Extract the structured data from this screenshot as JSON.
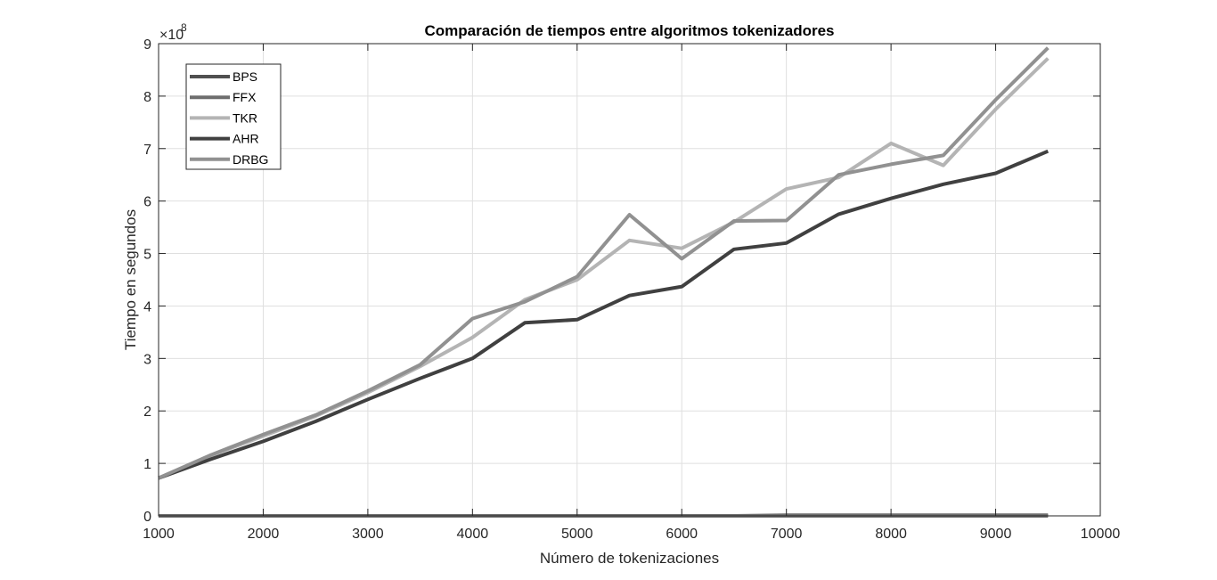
{
  "chart_data": {
    "type": "line",
    "title": "Comparación de tiempos entre algoritmos tokenizadores",
    "xlabel": "Número de tokenizaciones",
    "ylabel": "Tiempo en segundos",
    "y_exponent_label": "×10",
    "y_exponent_power": "8",
    "y_scale_factor": 100000000,
    "xlim": [
      1000,
      10000
    ],
    "ylim": [
      0,
      9
    ],
    "x_ticks": [
      1000,
      2000,
      3000,
      4000,
      5000,
      6000,
      7000,
      8000,
      9000,
      10000
    ],
    "y_ticks": [
      0,
      1,
      2,
      3,
      4,
      5,
      6,
      7,
      8,
      9
    ],
    "x_tick_labels": [
      "1000",
      "2000",
      "3000",
      "4000",
      "5000",
      "6000",
      "7000",
      "8000",
      "9000",
      "10000"
    ],
    "y_tick_labels": [
      "0",
      "1",
      "2",
      "3",
      "4",
      "5",
      "6",
      "7",
      "8",
      "9"
    ],
    "grid": true,
    "legend_position": "top-left",
    "x": [
      1000,
      1500,
      2000,
      2500,
      3000,
      3500,
      4000,
      4500,
      5000,
      5500,
      6000,
      6500,
      7000,
      7500,
      8000,
      8500,
      9000,
      9500
    ],
    "series": [
      {
        "name": "BPS",
        "color": "#505050",
        "values": [
          0.0,
          0.0,
          0.0,
          0.0,
          0.0,
          0.0,
          0.0,
          0.0,
          0.0,
          0.0,
          0.0,
          0.0,
          0.01,
          0.01,
          0.01,
          0.01,
          0.01,
          0.01
        ]
      },
      {
        "name": "FFX",
        "color": "#6e6e6e",
        "values": [
          0.0,
          0.0,
          0.0,
          0.0,
          0.0,
          0.0,
          0.0,
          0.0,
          0.0,
          0.0,
          0.0,
          0.0,
          0.0,
          0.0,
          0.0,
          0.0,
          0.0,
          0.0
        ]
      },
      {
        "name": "TKR",
        "color": "#b4b4b4",
        "values": [
          0.72,
          1.15,
          1.52,
          1.9,
          2.35,
          2.85,
          3.4,
          4.12,
          4.5,
          5.25,
          5.1,
          5.6,
          6.23,
          6.45,
          7.1,
          6.68,
          7.75,
          8.72
        ]
      },
      {
        "name": "AHR",
        "color": "#404040",
        "values": [
          0.72,
          1.08,
          1.42,
          1.8,
          2.22,
          2.62,
          3.0,
          3.68,
          3.74,
          4.2,
          4.37,
          5.08,
          5.2,
          5.75,
          6.05,
          6.32,
          6.53,
          6.95
        ]
      },
      {
        "name": "DRBG",
        "color": "#919191",
        "values": [
          0.72,
          1.16,
          1.55,
          1.92,
          2.38,
          2.88,
          3.76,
          4.08,
          4.56,
          5.74,
          4.9,
          5.62,
          5.63,
          6.5,
          6.7,
          6.87,
          7.93,
          8.92
        ]
      }
    ]
  }
}
